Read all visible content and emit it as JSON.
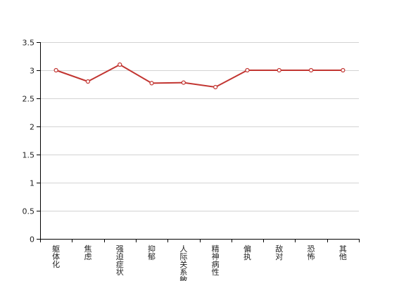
{
  "chart_data": {
    "type": "line",
    "title": "",
    "xlabel": "",
    "ylabel": "",
    "categories": [
      "躯体化",
      "焦虑",
      "强迫症状",
      "抑郁",
      "人际关系敏感",
      "精神病性",
      "偏执",
      "敌对",
      "恐怖",
      "其他"
    ],
    "series": [
      {
        "values": [
          3.0,
          2.8,
          3.1,
          2.77,
          2.78,
          2.7,
          3.0,
          3.0,
          3.0,
          3.0
        ],
        "color": "#c23531"
      }
    ],
    "ylim": [
      0,
      3.5
    ],
    "yticks": [
      0,
      0.5,
      1,
      1.5,
      2,
      2.5,
      3,
      3.5
    ],
    "ytick_labels": [
      "0",
      "0.5",
      "1",
      "1.5",
      "2",
      "2.5",
      "3",
      "3.5"
    ],
    "grid": true,
    "markers": "hollow-circle"
  }
}
